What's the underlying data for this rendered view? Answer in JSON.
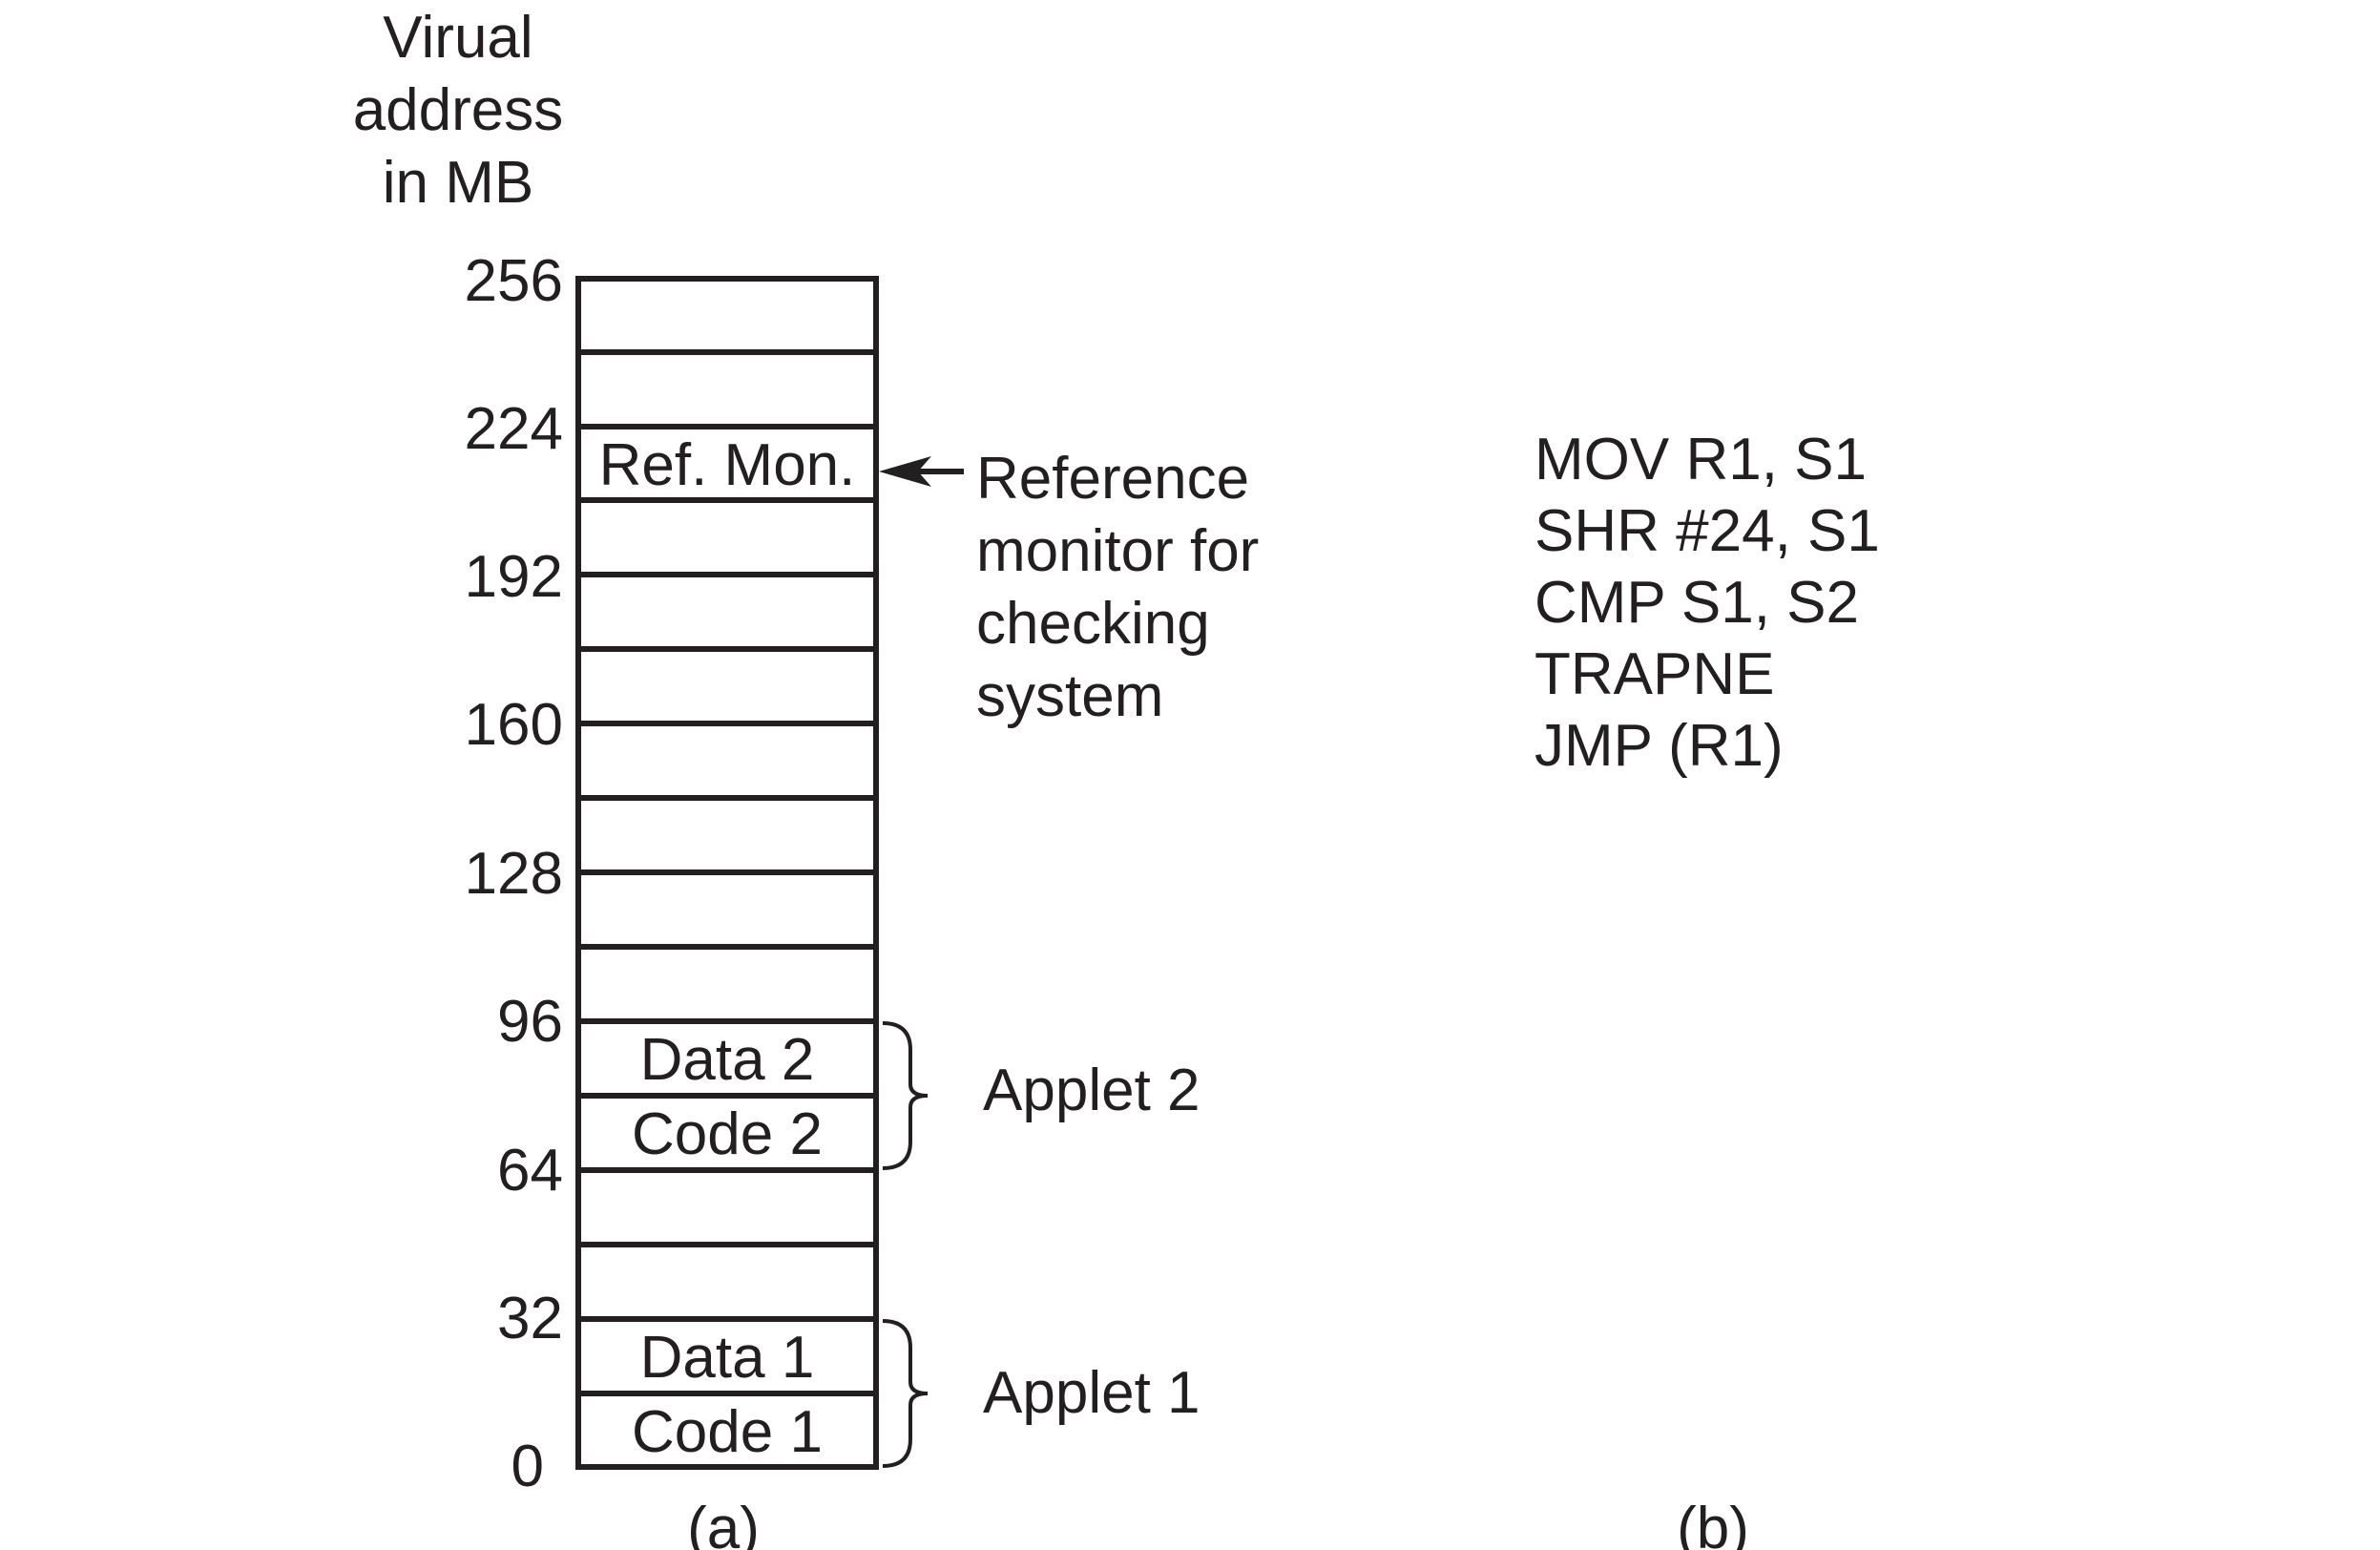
{
  "axis_title": [
    "Virual",
    "address",
    "in MB"
  ],
  "tick_labels": [
    "256",
    "224",
    "192",
    "160",
    "128",
    "96",
    "64",
    "32",
    "0"
  ],
  "segments": {
    "ref_mon": "Ref. Mon.",
    "data2": "Data 2",
    "code2": "Code 2",
    "data1": "Data 1",
    "code1": "Code 1"
  },
  "annotations": {
    "reference_monitor": [
      "Reference",
      "monitor for",
      "checking",
      "system"
    ],
    "applet2": "Applet 2",
    "applet1": "Applet 1"
  },
  "code_listing": [
    "MOV R1, S1",
    "SHR #24, S1",
    "CMP S1, S2",
    "TRAPNE",
    "JMP (R1)"
  ],
  "captions": {
    "a": "(a)",
    "b": "(b)"
  },
  "colors": {
    "ink": "#231f20",
    "background": "#ffffff"
  }
}
